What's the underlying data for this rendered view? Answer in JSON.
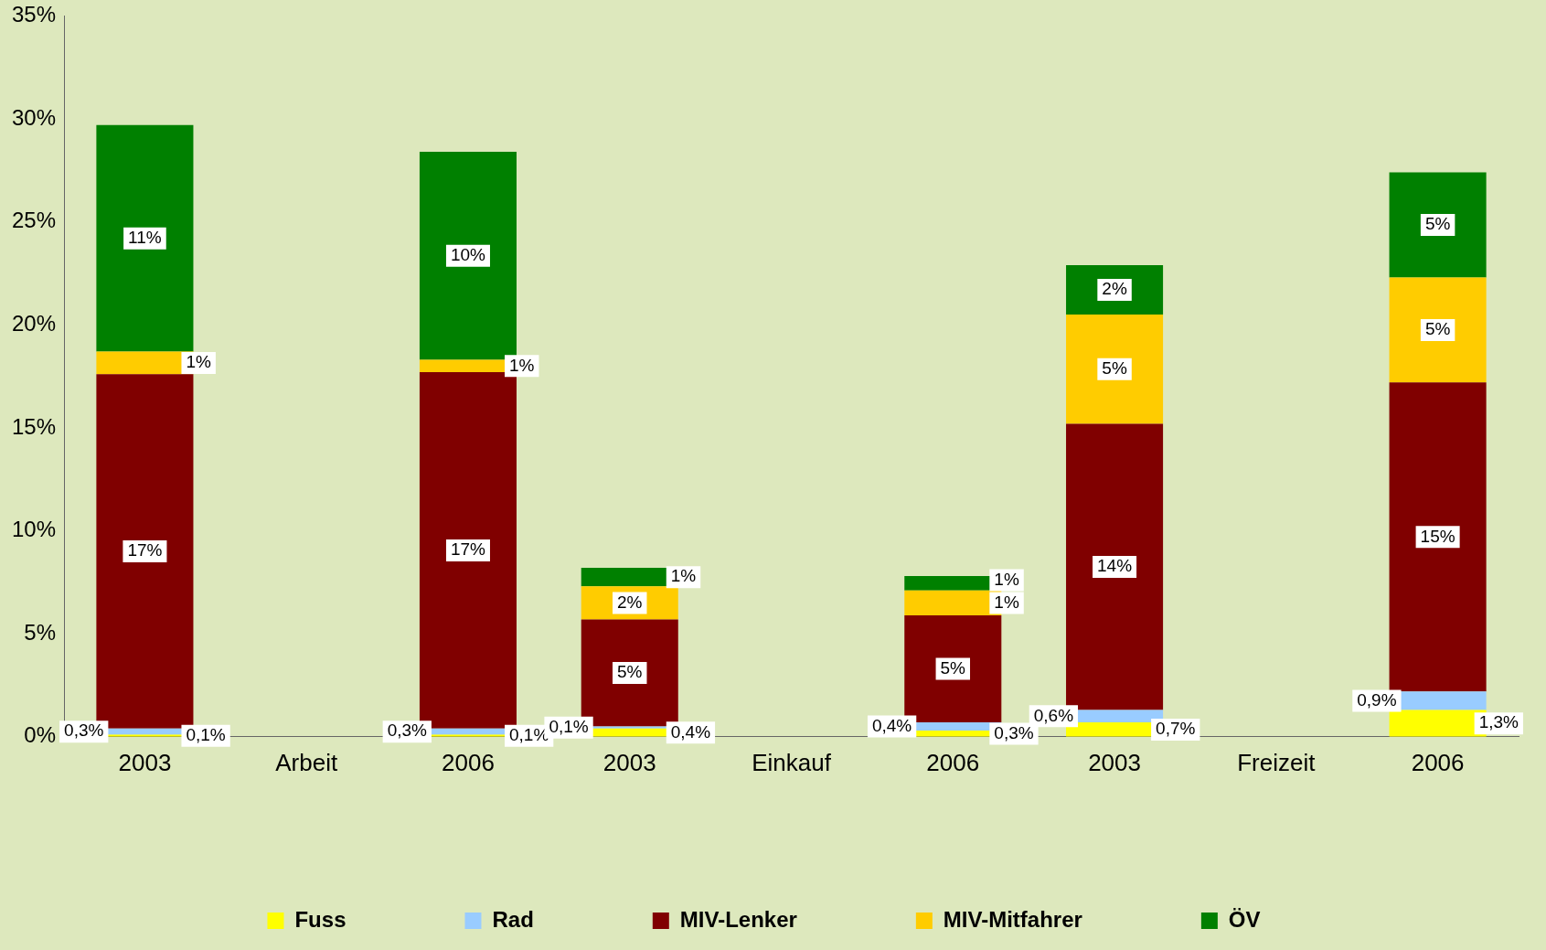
{
  "chart_data": {
    "type": "bar",
    "stacked": true,
    "categories": [
      "2003",
      "Arbeit",
      "2006",
      "2003",
      "Einkauf",
      "2006",
      "2003",
      "Freizeit",
      "2006"
    ],
    "series": [
      {
        "name": "Fuss",
        "color": "#ffff00",
        "values": [
          0.1,
          null,
          0.1,
          0.4,
          null,
          0.3,
          0.7,
          null,
          1.3
        ],
        "value_labels": [
          "0,1%",
          null,
          "0,1%",
          "0,4%",
          null,
          "0,3%",
          "0,7%",
          null,
          "1,3%"
        ]
      },
      {
        "name": "Rad",
        "color": "#99ccff",
        "values": [
          0.3,
          null,
          0.3,
          0.1,
          null,
          0.4,
          0.6,
          null,
          0.9
        ],
        "value_labels": [
          "0,3%",
          null,
          "0,3%",
          "0,1%",
          null,
          "0,4%",
          "0,6%",
          null,
          "0,9%"
        ]
      },
      {
        "name": "MIV-Lenker",
        "color": "#800000",
        "values": [
          17.2,
          null,
          17.3,
          5.2,
          null,
          5.2,
          13.9,
          null,
          15.0
        ],
        "value_labels": [
          "17%",
          null,
          "17%",
          "5%",
          null,
          "5%",
          "14%",
          null,
          "15%"
        ]
      },
      {
        "name": "MIV-Mitfahrer",
        "color": "#ffcc00",
        "values": [
          1.1,
          null,
          0.6,
          1.6,
          null,
          1.2,
          5.3,
          null,
          5.1
        ],
        "value_labels": [
          "1%",
          null,
          "1%",
          "2%",
          null,
          "1%",
          "5%",
          null,
          "5%"
        ]
      },
      {
        "name": "ÖV",
        "color": "#008000",
        "values": [
          11.0,
          null,
          10.1,
          0.9,
          null,
          0.7,
          2.4,
          null,
          5.1
        ],
        "value_labels": [
          "11%",
          null,
          "10%",
          "1%",
          null,
          "1%",
          "2%",
          null,
          "5%"
        ]
      }
    ],
    "ylim": [
      0,
      35
    ],
    "yticks": [
      {
        "value": 0,
        "label": "0%"
      },
      {
        "value": 5,
        "label": "5%"
      },
      {
        "value": 10,
        "label": "10%"
      },
      {
        "value": 15,
        "label": "15%"
      },
      {
        "value": 20,
        "label": "20%"
      },
      {
        "value": 25,
        "label": "25%"
      },
      {
        "value": 30,
        "label": "30%"
      },
      {
        "value": 35,
        "label": "35%"
      }
    ],
    "grid": false,
    "legend": "bottom"
  }
}
